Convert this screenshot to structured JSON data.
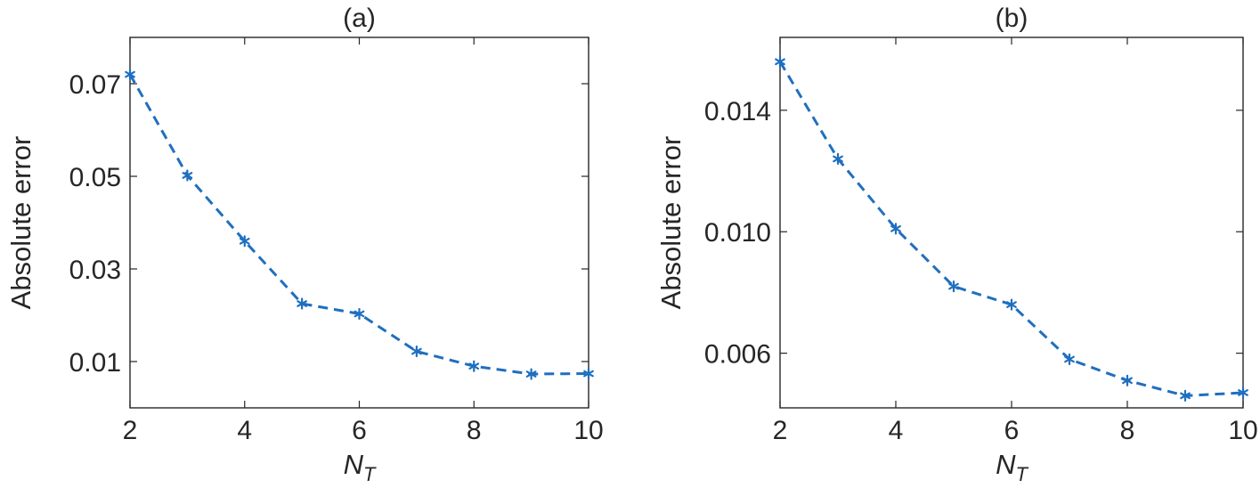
{
  "colors": {
    "series": "#1f6fbf",
    "axes": "#262626"
  },
  "chart_data": [
    {
      "type": "line",
      "title": "(a)",
      "xlabel": "N",
      "xlabel_subscript": "T",
      "ylabel": "Absolute error",
      "xlim": [
        2,
        10
      ],
      "ylim": [
        0.0,
        0.08
      ],
      "xticks": [
        2,
        4,
        6,
        8,
        10
      ],
      "yticks": [
        0.01,
        0.03,
        0.05,
        0.07
      ],
      "ytick_labels": [
        "0.01",
        "0.03",
        "0.05",
        "0.07"
      ],
      "grid": false,
      "line_style": "dashed",
      "marker": "asterisk",
      "series": [
        {
          "x": [
            2,
            3,
            4,
            5,
            6,
            7,
            8,
            9,
            10
          ],
          "values": [
            0.072,
            0.0502,
            0.036,
            0.0225,
            0.0203,
            0.0122,
            0.009,
            0.0073,
            0.0074
          ]
        }
      ]
    },
    {
      "type": "line",
      "title": "(b)",
      "xlabel": "N",
      "xlabel_subscript": "T",
      "ylabel": "Absolute error",
      "xlim": [
        2,
        10
      ],
      "ylim": [
        0.0042,
        0.0164
      ],
      "xticks": [
        2,
        4,
        6,
        8,
        10
      ],
      "yticks": [
        0.006,
        0.01,
        0.014
      ],
      "ytick_labels": [
        "0.006",
        "0.010",
        "0.014"
      ],
      "grid": false,
      "line_style": "dashed",
      "marker": "asterisk",
      "series": [
        {
          "x": [
            2,
            3,
            4,
            5,
            6,
            7,
            8,
            9,
            10
          ],
          "values": [
            0.0156,
            0.0124,
            0.0101,
            0.0082,
            0.0076,
            0.0058,
            0.0051,
            0.0046,
            0.0047
          ]
        }
      ]
    }
  ]
}
